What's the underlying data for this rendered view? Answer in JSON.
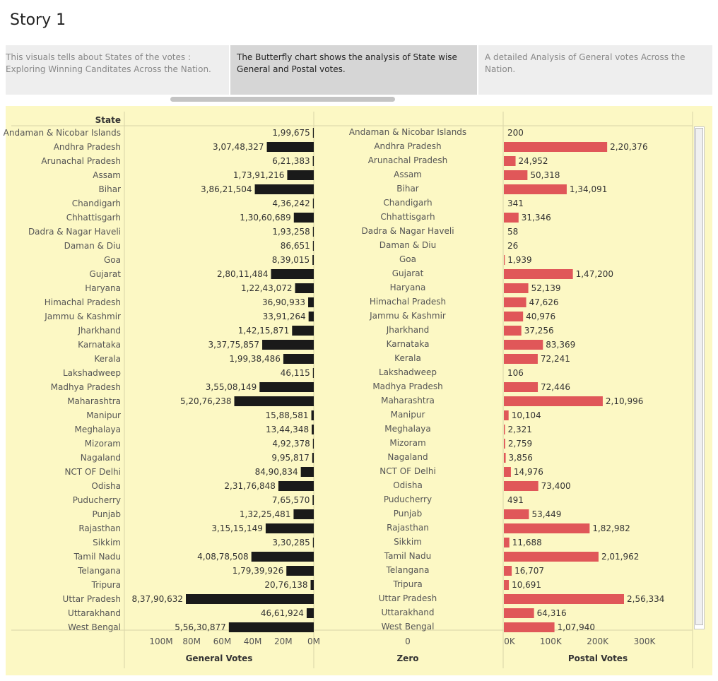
{
  "story": {
    "title": "Story 1",
    "tabs": [
      "This visuals tells about States of the votes : Exploring Winning Canditates Across the Nation.",
      "The Butterfly chart shows the analysis of  State wise General and Postal votes.",
      "A  detailed Analysis of General votes Across the Nation."
    ]
  },
  "chart_data": {
    "type": "bar",
    "row_header": "State",
    "categories": [
      "Andaman & Nicobar Islands",
      "Andhra Pradesh",
      "Arunachal Pradesh",
      "Assam",
      "Bihar",
      "Chandigarh",
      "Chhattisgarh",
      "Dadra & Nagar Haveli",
      "Daman & Diu",
      "Goa",
      "Gujarat",
      "Haryana",
      "Himachal Pradesh",
      "Jammu & Kashmir",
      "Jharkhand",
      "Karnataka",
      "Kerala",
      "Lakshadweep",
      "Madhya Pradesh",
      "Maharashtra",
      "Manipur",
      "Meghalaya",
      "Mizoram",
      "Nagaland",
      "NCT OF Delhi",
      "Odisha",
      "Puducherry",
      "Punjab",
      "Rajasthan",
      "Sikkim",
      "Tamil Nadu",
      "Telangana",
      "Tripura",
      "Uttar Pradesh",
      "Uttarakhand",
      "West Bengal"
    ],
    "series": [
      {
        "name": "General Votes",
        "values": [
          199675,
          30748327,
          621383,
          17391216,
          38621504,
          436242,
          13060689,
          193258,
          86651,
          839015,
          28011484,
          12243072,
          3690933,
          3391264,
          14215871,
          33775857,
          19938486,
          46115,
          35508149,
          52076238,
          1588581,
          1344348,
          492378,
          995817,
          8490834,
          23176848,
          765570,
          13225481,
          31515149,
          330285,
          40878508,
          17939926,
          2076138,
          83790632,
          4661924,
          55630877
        ],
        "labels": [
          "1,99,675",
          "3,07,48,327",
          "6,21,383",
          "1,73,91,216",
          "3,86,21,504",
          "4,36,242",
          "1,30,60,689",
          "1,93,258",
          "86,651",
          "8,39,015",
          "2,80,11,484",
          "1,22,43,072",
          "36,90,933",
          "33,91,264",
          "1,42,15,871",
          "3,37,75,857",
          "1,99,38,486",
          "46,115",
          "3,55,08,149",
          "5,20,76,238",
          "15,88,581",
          "13,44,348",
          "4,92,378",
          "9,95,817",
          "84,90,834",
          "2,31,76,848",
          "7,65,570",
          "1,32,25,481",
          "3,15,15,149",
          "3,30,285",
          "4,08,78,508",
          "1,79,39,926",
          "20,76,138",
          "8,37,90,632",
          "46,61,924",
          "5,56,30,877"
        ],
        "color": "#1a1a1a"
      },
      {
        "name": "Postal Votes",
        "values": [
          200,
          220376,
          24952,
          50318,
          134091,
          341,
          31346,
          58,
          26,
          1939,
          147200,
          52139,
          47626,
          40976,
          37256,
          83369,
          72241,
          106,
          72446,
          210996,
          10104,
          2321,
          2759,
          3856,
          14976,
          73400,
          491,
          53449,
          182982,
          11688,
          201962,
          16707,
          10691,
          256334,
          64316,
          107940
        ],
        "labels": [
          "200",
          "2,20,376",
          "24,952",
          "50,318",
          "1,34,091",
          "341",
          "31,346",
          "58",
          "26",
          "1,939",
          "1,47,200",
          "52,139",
          "47,626",
          "40,976",
          "37,256",
          "83,369",
          "72,241",
          "106",
          "72,446",
          "2,10,996",
          "10,104",
          "2,321",
          "2,759",
          "3,856",
          "14,976",
          "73,400",
          "491",
          "53,449",
          "1,82,982",
          "11,688",
          "2,01,962",
          "16,707",
          "10,691",
          "2,56,334",
          "64,316",
          "1,07,940"
        ],
        "color": "#e05759"
      }
    ],
    "axes": {
      "general": {
        "title": "General Votes",
        "ticks": [
          "100M",
          "80M",
          "60M",
          "40M",
          "20M",
          "0M"
        ],
        "tick_values": [
          100000000,
          80000000,
          60000000,
          40000000,
          20000000,
          0
        ],
        "range": [
          0,
          105000000
        ],
        "reversed": true
      },
      "zero": {
        "title": "Zero",
        "ticks": [
          "0"
        ]
      },
      "postal": {
        "title": "Postal Votes",
        "ticks": [
          "0K",
          "100K",
          "200K",
          "300K"
        ],
        "tick_values": [
          0,
          100000,
          200000,
          300000
        ],
        "range": [
          0,
          345000
        ]
      }
    }
  }
}
